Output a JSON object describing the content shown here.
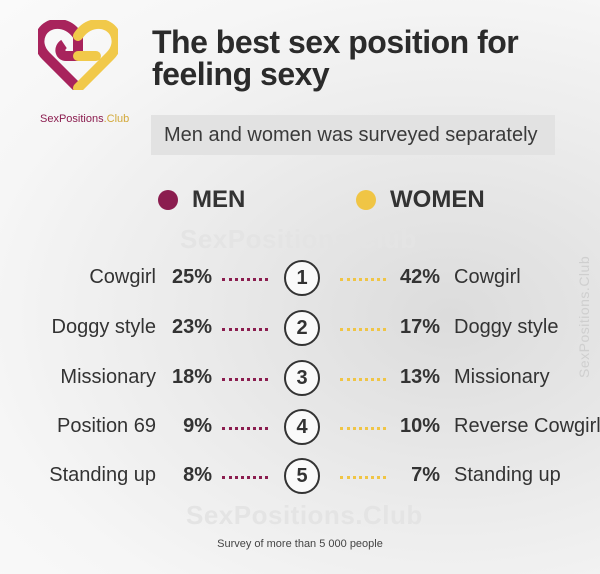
{
  "header": {
    "title_line1": "The best sex position for",
    "title_line2": "feeling sexy",
    "subtitle": "Men and women was surveyed separately"
  },
  "brand": {
    "part1": "SexPositions",
    "part2": ".Club",
    "watermark": "SexPositions.Club"
  },
  "colors": {
    "men": "#8b1d4f",
    "women": "#f0c545",
    "logo_left": "#a8235c",
    "logo_right": "#f1c94a"
  },
  "legend": {
    "men": "MEN",
    "women": "WOMEN"
  },
  "footer": "Survey of more than 5 000 people",
  "chart_data": {
    "type": "table",
    "ranks": [
      "1",
      "2",
      "3",
      "4",
      "5"
    ],
    "series": [
      {
        "name": "MEN",
        "categories": [
          "Cowgirl",
          "Doggy style",
          "Missionary",
          "Position 69",
          "Standing up"
        ],
        "labels": [
          "25%",
          "23%",
          "18%",
          "9%",
          "8%"
        ],
        "values": [
          25,
          23,
          18,
          9,
          8
        ]
      },
      {
        "name": "WOMEN",
        "categories": [
          "Cowgirl",
          "Doggy style",
          "Missionary",
          "Reverse Cowgirl",
          "Standing up"
        ],
        "labels": [
          "42%",
          "17%",
          "13%",
          "10%",
          "7%"
        ],
        "values": [
          42,
          17,
          13,
          10,
          7
        ]
      }
    ]
  }
}
